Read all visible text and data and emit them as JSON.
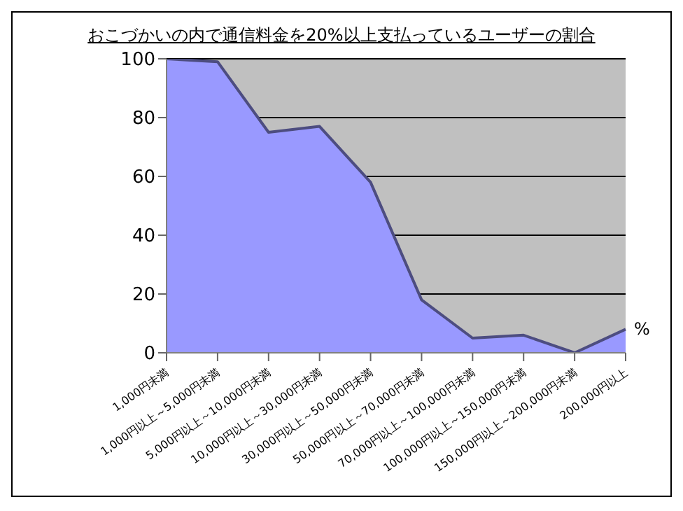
{
  "chart_data": {
    "type": "area",
    "title": "おこづかいの内で通信料金を20%以上支払っているユーザーの割合",
    "categories": [
      "1,000円未満",
      "1,000円以上～5,000円未満",
      "5,000円以上～10,000円未満",
      "10,000円以上～30,000円未満",
      "30,000円以上～50,000円未満",
      "50,000円以上～70,000円未満",
      "70,000円以上～100,000円未満",
      "100,000円以上～150,000円未満",
      "150,000円以上～200,000円未満",
      "200,000円以上"
    ],
    "series": [
      {
        "name": "%",
        "color": "#9999ff",
        "values": [
          100,
          99,
          75,
          77,
          58,
          18,
          5,
          6,
          0,
          8
        ]
      }
    ],
    "ylim": [
      0,
      100
    ],
    "yticks": [
      0,
      20,
      40,
      60,
      80,
      100
    ],
    "grid": "y",
    "legend": false
  }
}
